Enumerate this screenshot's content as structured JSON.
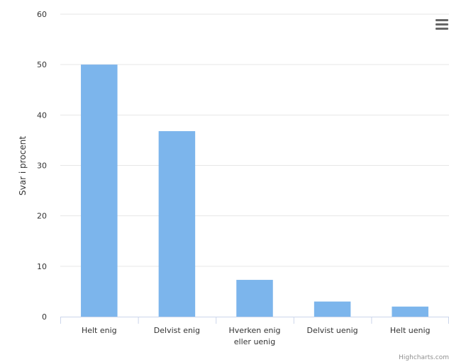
{
  "chart_data": {
    "type": "bar",
    "title": "",
    "xlabel": "",
    "ylabel": "Svar i procent",
    "categories": [
      [
        "Helt enig"
      ],
      [
        "Delvist enig"
      ],
      [
        "Hverken enig",
        "eller uenig"
      ],
      [
        "Delvist uenig"
      ],
      [
        "Helt uenig"
      ]
    ],
    "values": [
      50,
      36.8,
      7.3,
      3,
      2
    ],
    "ylim": [
      0,
      60
    ],
    "yticks": [
      0,
      10,
      20,
      30,
      40,
      50,
      60
    ],
    "grid": true,
    "bar_color": "#7cb5ec",
    "grid_color": "#e6e6e6",
    "axis_color": "#ccd6eb"
  },
  "credits": "Highcharts.com",
  "menu": {
    "icon": "menu-icon"
  }
}
